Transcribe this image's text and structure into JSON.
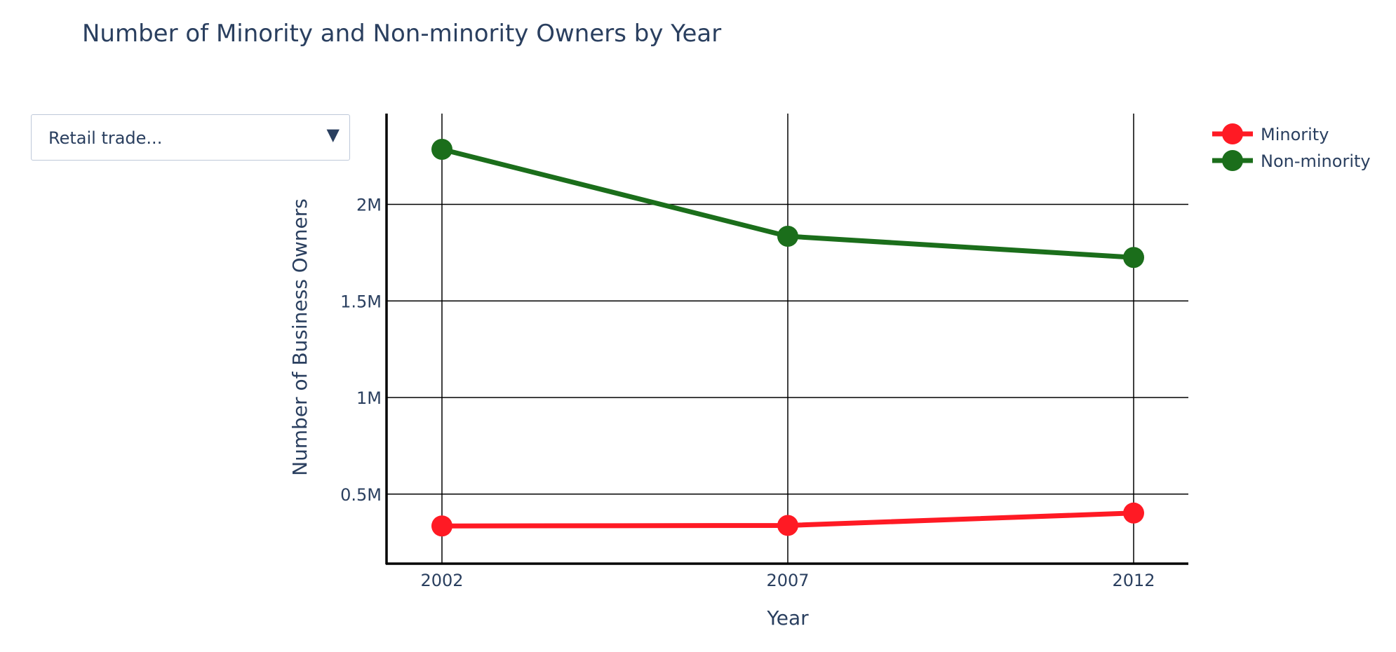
{
  "chart_data": {
    "type": "line",
    "title": "Number of Minority and Non-minority Owners by Year",
    "xlabel": "Year",
    "ylabel": "Number of Business Owners",
    "x": [
      2002,
      2007,
      2012
    ],
    "x_ticks": [
      "2002",
      "2007",
      "2012"
    ],
    "y_ticks": [
      500000,
      1000000,
      1500000,
      2000000
    ],
    "y_tick_labels": [
      "0.5M",
      "1M",
      "1.5M",
      "2M"
    ],
    "ylim": [
      140000,
      2470000
    ],
    "grid": true,
    "legend_position": "top-right",
    "series": [
      {
        "name": "Minority",
        "color": "#ff1a24",
        "values": [
          335000,
          338000,
          402000
        ]
      },
      {
        "name": "Non-minority",
        "color": "#1b6e1b",
        "values": [
          2285000,
          1835000,
          1725000
        ]
      }
    ]
  },
  "dropdown": {
    "selected": "Retail trade...",
    "arrow_icon": "triangle-down-icon"
  }
}
